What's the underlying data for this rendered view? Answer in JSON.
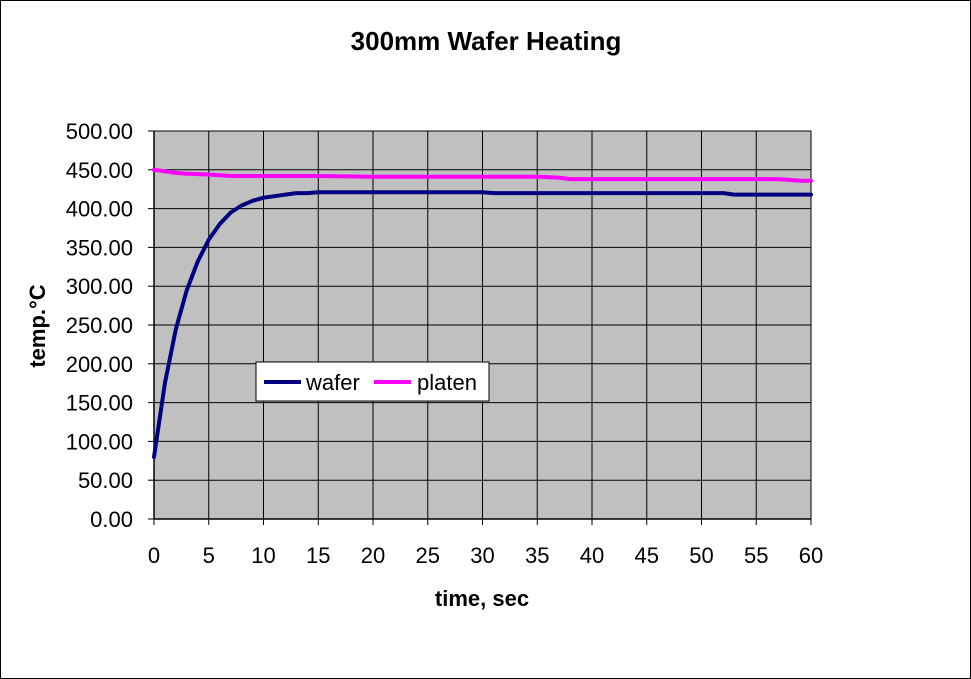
{
  "chart_data": {
    "type": "line",
    "title": "300mm Wafer Heating",
    "xlabel": "time, sec",
    "ylabel": "temp.°C",
    "xlim": [
      0,
      60
    ],
    "ylim": [
      0,
      500
    ],
    "xticks": [
      0,
      5,
      10,
      15,
      20,
      25,
      30,
      35,
      40,
      45,
      50,
      55,
      60
    ],
    "yticks": [
      0,
      50,
      100,
      150,
      200,
      250,
      300,
      350,
      400,
      450,
      500
    ],
    "ytick_labels": [
      "0.00",
      "50.00",
      "100.00",
      "150.00",
      "200.00",
      "250.00",
      "300.00",
      "350.00",
      "400.00",
      "450.00",
      "500.00"
    ],
    "grid": true,
    "plot_background": "#c0c0c0",
    "legend_position": "center-left",
    "series": [
      {
        "name": "wafer",
        "color": "#000080",
        "x": [
          0,
          1,
          2,
          3,
          4,
          5,
          6,
          7,
          8,
          9,
          10,
          11,
          12,
          13,
          14,
          15,
          20,
          25,
          30,
          31,
          35,
          40,
          45,
          50,
          52,
          53,
          55,
          60
        ],
        "y": [
          80,
          175,
          245,
          295,
          332,
          360,
          380,
          395,
          404,
          410,
          414,
          416,
          418,
          420,
          420,
          421,
          421,
          421,
          421,
          420,
          420,
          420,
          420,
          420,
          420,
          418,
          418,
          418
        ]
      },
      {
        "name": "platen",
        "color": "#ff00ff",
        "x": [
          0,
          1,
          2,
          3,
          5,
          6,
          7,
          8,
          10,
          15,
          20,
          25,
          30,
          35,
          37,
          38,
          40,
          45,
          50,
          55,
          57,
          58,
          59,
          60
        ],
        "y": [
          450,
          448,
          446,
          445,
          444,
          443,
          442,
          442,
          442,
          442,
          441,
          441,
          441,
          441,
          440,
          438,
          438,
          438,
          438,
          438,
          438,
          437,
          436,
          436
        ]
      }
    ]
  }
}
